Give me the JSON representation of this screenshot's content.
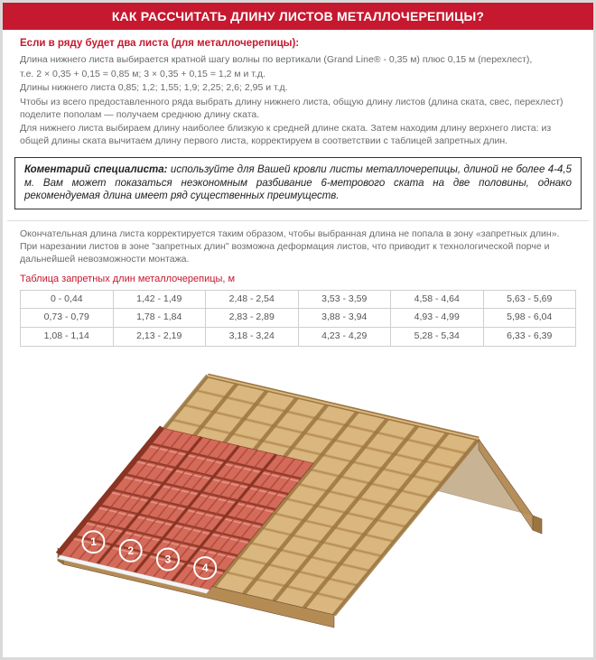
{
  "title": "КАК РАССЧИТАТЬ ДЛИНУ ЛИСТОВ МЕТАЛЛОЧЕРЕПИЦЫ?",
  "intro": {
    "heading": "Если в ряду будет два листа (для металлочерепицы):",
    "p1": "Длина нижнего листа выбирается кратной шагу волны по вертикали (Grand Line® - 0,35 м) плюс 0,15 м (перехлест),",
    "p2": "т.е. 2 × 0,35 + 0,15 = 0,85 м; 3 × 0,35 + 0,15 = 1,2 м и т.д.",
    "p3": "Длины нижнего листа 0,85; 1,2; 1,55; 1,9; 2,25; 2,6; 2,95 и т.д.",
    "p4": "Чтобы из всего предоставленного ряда выбрать длину нижнего листа, общую длину листов (длина ската, свес, перехлест) поделите пополам — получаем среднюю длину ската.",
    "p5": "Для нижнего листа выбираем длину наиболее близкую к средней длине ската. Затем находим длину верхнего листа: из общей длины ската вычитаем длину первого листа, корректируем в соответствии с таблицей запретных длин."
  },
  "comment": {
    "lead": "Коментарий специалиста:",
    "text": " используйте для Вашей кровли листы металлочерепицы, длиной не более 4-4,5 м. Вам может показаться неэкономным разбивание 6-метрового ската на две половины, однако рекомендуемая длина имеет ряд существенных преимуществ."
  },
  "after": {
    "p1": "Окончательная длина листа корректируется таким образом, чтобы выбранная длина не попала в зону «запретных длин». При нарезании листов в зоне \"запретных длин\" возможна деформация листов, что приводит к технологической порче и дальнейшей невозможности монтажа."
  },
  "table": {
    "caption": "Таблица запретных длин металлочерепицы, м",
    "rows": [
      [
        "0 - 0,44",
        "1,42 - 1,49",
        "2,48 - 2,54",
        "3,53 - 3,59",
        "4,58 - 4,64",
        "5,63 - 5,69"
      ],
      [
        "0,73 - 0,79",
        "1,78 - 1,84",
        "2,83 - 2,89",
        "3,88 - 3,94",
        "4,93 - 4,99",
        "5,98 - 6,04"
      ],
      [
        "1,08 - 1,14",
        "2,13 - 2,19",
        "3,18 - 3,24",
        "4,23 - 4,29",
        "5,28 - 5,34",
        "6,33 - 6,39"
      ]
    ]
  },
  "diagram": {
    "labels": [
      "1",
      "2",
      "3",
      "4"
    ],
    "colors": {
      "tile_light": "#d36a5a",
      "tile_dark": "#a8402f",
      "tile_shadow": "#8a3424",
      "wood_light": "#d9b77f",
      "wood_mid": "#c39a5f",
      "wood_dark": "#9c7640",
      "beam": "#b58b54",
      "outline": "#6e5030",
      "circle_stroke": "#ffffff",
      "circle_fill": "rgba(255,255,255,0.0)",
      "label_text": "#ffffff",
      "edge_white": "#f4f4f4"
    }
  }
}
